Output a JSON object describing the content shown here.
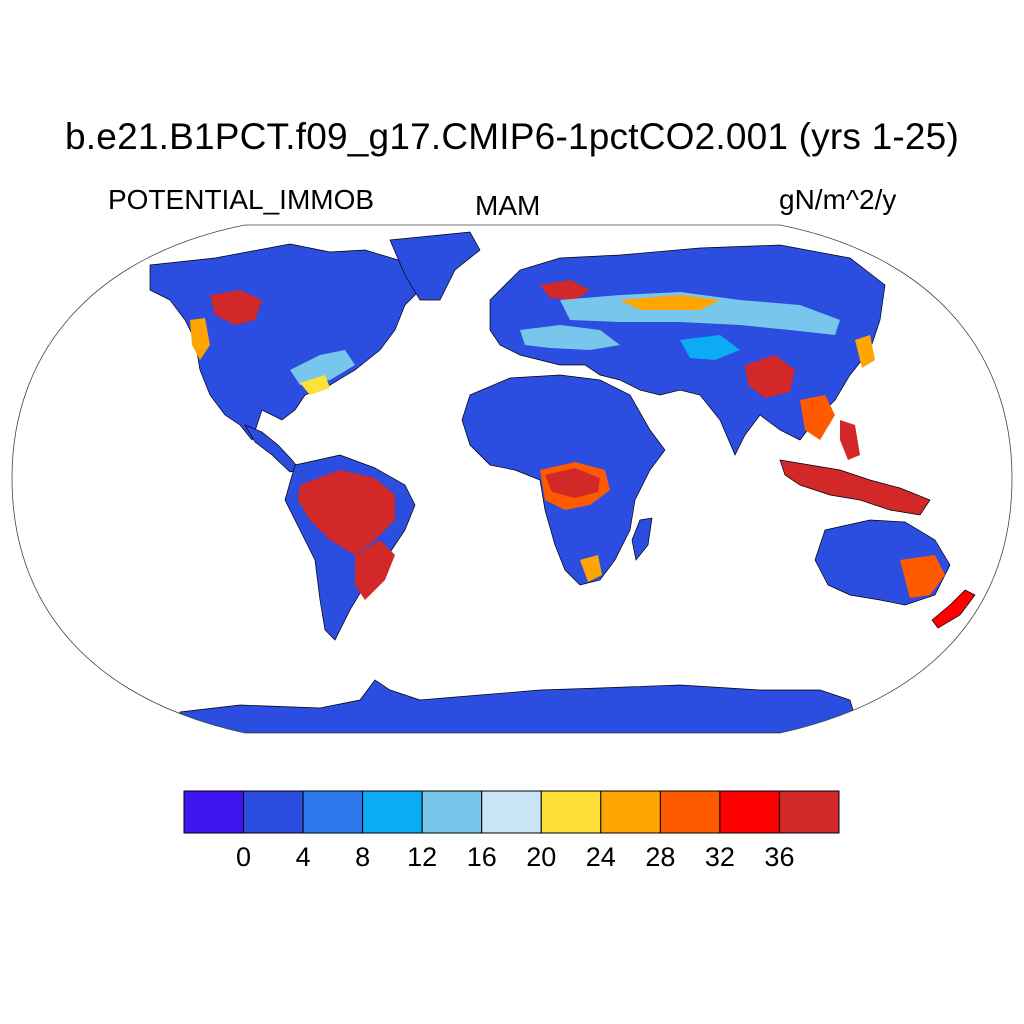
{
  "title": "b.e21.B1PCT.f09_g17.CMIP6-1pctCO2.001 (yrs 1-25)",
  "variable": "POTENTIAL_IMMOB",
  "season": "MAM",
  "units": "gN/m^2/y",
  "colorbar": {
    "levels": [
      0,
      4,
      8,
      12,
      16,
      20,
      24,
      28,
      32,
      36
    ],
    "colors": [
      "#3e14f0",
      "#2b4de0",
      "#2a78ec",
      "#0cacf5",
      "#78c6ec",
      "#c9e5f6",
      "#fde03a",
      "#ffa500",
      "#ff5a00",
      "#ff0000",
      "#d22828"
    ]
  },
  "map": {
    "projection": "Robinson",
    "ocean_color": "#ffffff",
    "land_base_color": "#2b4de0"
  }
}
